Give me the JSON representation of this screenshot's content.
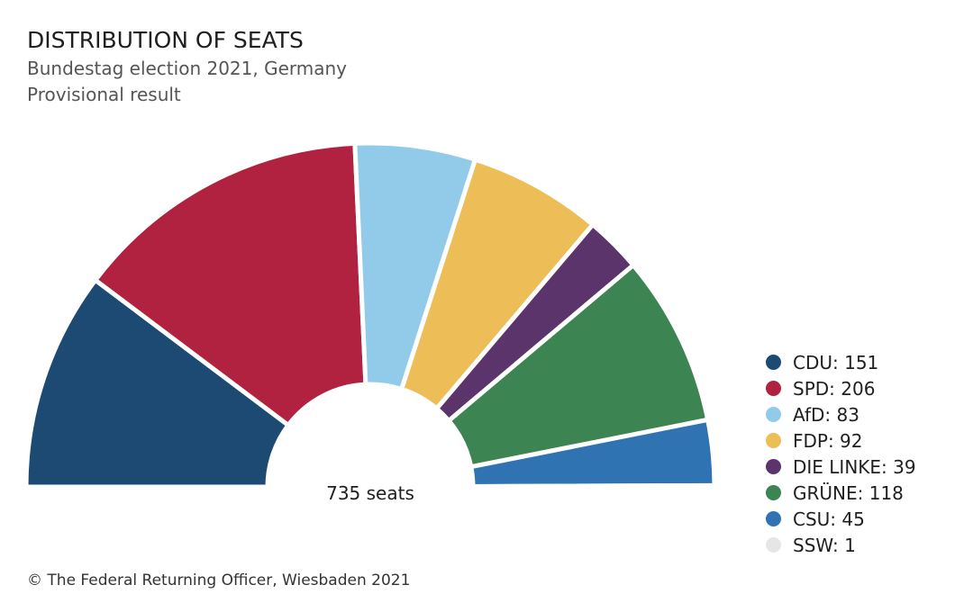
{
  "chart_data": {
    "type": "pie",
    "variant": "semicircle-parliament",
    "title": "DISTRIBUTION OF SEATS",
    "subtitle_lines": [
      "Bundestag election 2021, Germany",
      "Provisional result"
    ],
    "center_label": "735 seats",
    "total": 735,
    "series": [
      {
        "name": "CDU",
        "value": 151,
        "color": "#1c4a73",
        "legend_label": "CDU: 151"
      },
      {
        "name": "SPD",
        "value": 206,
        "color": "#b0223f",
        "legend_label": "SPD: 206"
      },
      {
        "name": "AfD",
        "value": 83,
        "color": "#92cbea",
        "legend_label": "AfD: 83"
      },
      {
        "name": "FDP",
        "value": 92,
        "color": "#edbd58",
        "legend_label": "FDP: 92"
      },
      {
        "name": "DIE LINKE",
        "value": 39,
        "color": "#5b346c",
        "legend_label": "DIE LINKE: 39"
      },
      {
        "name": "GRÜNE",
        "value": 118,
        "color": "#3c8451",
        "legend_label": "GRÜNE: 118"
      },
      {
        "name": "CSU",
        "value": 45,
        "color": "#2f73b3",
        "legend_label": "CSU: 45"
      },
      {
        "name": "SSW",
        "value": 1,
        "color": "#e6e6e6",
        "legend_label": "SSW: 1"
      }
    ],
    "legend_position": "right",
    "source": "© The Federal Returning Officer, Wiesbaden 2021"
  }
}
